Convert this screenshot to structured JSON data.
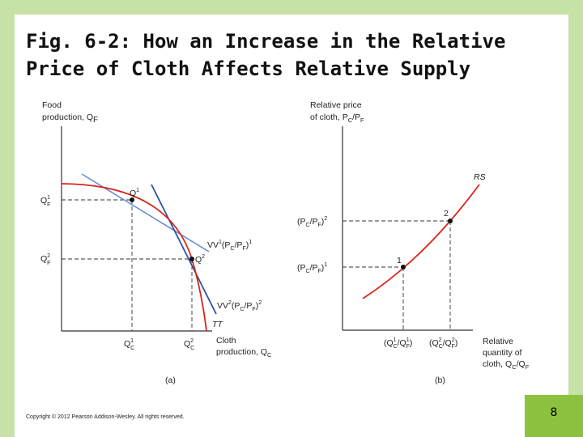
{
  "slide": {
    "title_line1": "Fig. 6-2: How an Increase in the Relative",
    "title_line2": "Price of Cloth Affects Relative Supply",
    "copyright": "Copyright © 2012 Pearson Addison-Wesley. All rights reserved.",
    "page_number": "8",
    "colors": {
      "band": "#c6e2a6",
      "corner": "#8cc23f",
      "curve": "#d9261c",
      "line1": "#6a8fd0",
      "line2": "#2b52a8"
    }
  },
  "panel_a": {
    "y_axis_label_1": "Food",
    "y_axis_label_2": "production, Q",
    "y_axis_label_sub": "F",
    "x_axis_label_1": "Cloth",
    "x_axis_label_2": "production, Q",
    "x_axis_label_sub": "C",
    "caption": "(a)",
    "point_1": "Q",
    "point_1_sup": "1",
    "point_2": "Q",
    "point_2_sup": "2",
    "ytick_1": "Q",
    "ytick_1_sup": "1",
    "ytick_1_sub": "F",
    "ytick_2": "Q",
    "ytick_2_sup": "2",
    "ytick_2_sub": "F",
    "xtick_1": "Q",
    "xtick_1_sup": "1",
    "xtick_1_sub": "C",
    "xtick_2": "Q",
    "xtick_2_sup": "2",
    "xtick_2_sub": "C",
    "ppf_label": "TT",
    "vv1": {
      "head": "VV",
      "sup1": "1",
      "open": "(P",
      "c": "C",
      "slash": "/P",
      "f": "F",
      "close": ")",
      "sup2": "1"
    },
    "vv2": {
      "head": "VV",
      "sup1": "2",
      "open": "(P",
      "c": "C",
      "slash": "/P",
      "f": "F",
      "close": ")",
      "sup2": "2"
    }
  },
  "panel_b": {
    "y_axis_label_1": "Relative price",
    "y_axis_label_2": "of cloth, P",
    "y_axis_label_c": "C",
    "y_axis_label_slash": "/P",
    "y_axis_label_f": "F",
    "x_axis_label_1": "Relative",
    "x_axis_label_2": "quantity of",
    "x_axis_label_3": "cloth, Q",
    "x_axis_label_c": "C",
    "x_axis_label_slash": "/Q",
    "x_axis_label_f": "F",
    "caption": "(b)",
    "curve_label": "RS",
    "point_1": "1",
    "point_2": "2",
    "ytick_1": {
      "open": "(P",
      "c": "C",
      "slash": "/P",
      "f": "F",
      "close": ")",
      "sup": "1"
    },
    "ytick_2": {
      "open": "(P",
      "c": "C",
      "slash": "/P",
      "f": "F",
      "close": ")",
      "sup": "2"
    },
    "xtick_1": {
      "open": "(Q",
      "c_sup": "1",
      "c": "C",
      "slash": "/Q",
      "f_sup": "1",
      "f": "F",
      "close": ")"
    },
    "xtick_2": {
      "open": "(Q",
      "c_sup": "2",
      "c": "C",
      "slash": "/Q",
      "f_sup": "2",
      "f": "F",
      "close": ")"
    }
  }
}
